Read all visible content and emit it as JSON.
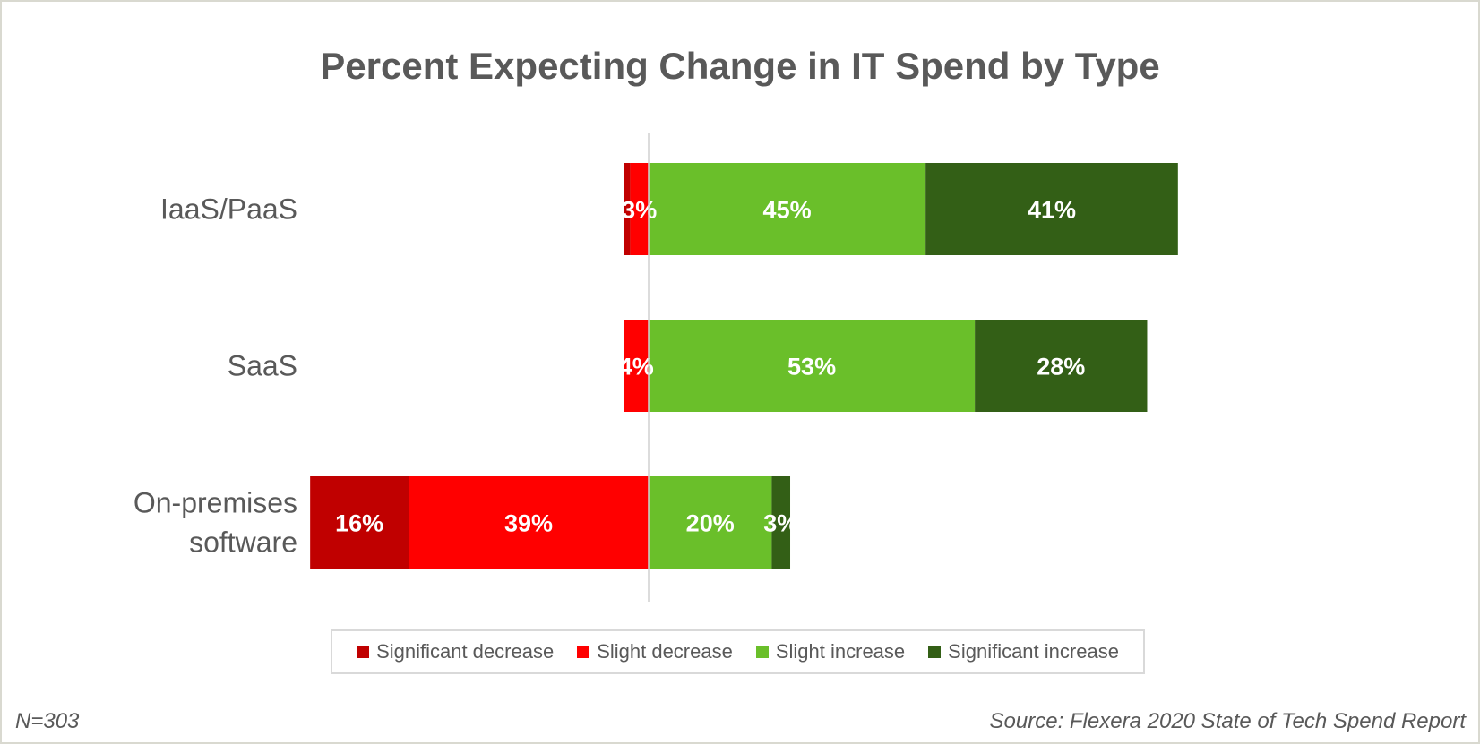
{
  "chart_data": {
    "type": "bar",
    "orientation": "horizontal",
    "stacked": true,
    "diverging": true,
    "title": "Percent Expecting Change in IT Spend by Type",
    "xlabel": "",
    "ylabel": "",
    "categories": [
      "IaaS/PaaS",
      "SaaS",
      "On-premises software"
    ],
    "category_lines": [
      [
        "IaaS/PaaS"
      ],
      [
        "SaaS"
      ],
      [
        "On-premises",
        "software"
      ]
    ],
    "series": [
      {
        "name": "Significant decrease",
        "color": "#c00000",
        "direction": "negative",
        "values": [
          1,
          0,
          16
        ],
        "labels": [
          "",
          "",
          "16%"
        ]
      },
      {
        "name": "Slight decrease",
        "color": "#ff0000",
        "direction": "negative",
        "values": [
          3,
          4,
          39
        ],
        "labels": [
          "3%",
          "4%",
          "39%"
        ]
      },
      {
        "name": "Slight increase",
        "color": "#6abf2a",
        "direction": "positive",
        "values": [
          45,
          53,
          20
        ],
        "labels": [
          "45%",
          "53%",
          "20%"
        ]
      },
      {
        "name": "Significant increase",
        "color": "#335f16",
        "direction": "positive",
        "values": [
          41,
          28,
          3
        ],
        "labels": [
          "41%",
          "28%",
          "3%"
        ]
      }
    ],
    "xlim": [
      -55,
      130
    ],
    "grid": false,
    "legend_position": "bottom",
    "notes": {
      "sample": "N=303",
      "source": "Source: Flexera 2020 State of Tech Spend Report"
    }
  },
  "footer": {
    "sample": "N=303",
    "source": "Source: Flexera 2020 State of Tech Spend Report"
  }
}
